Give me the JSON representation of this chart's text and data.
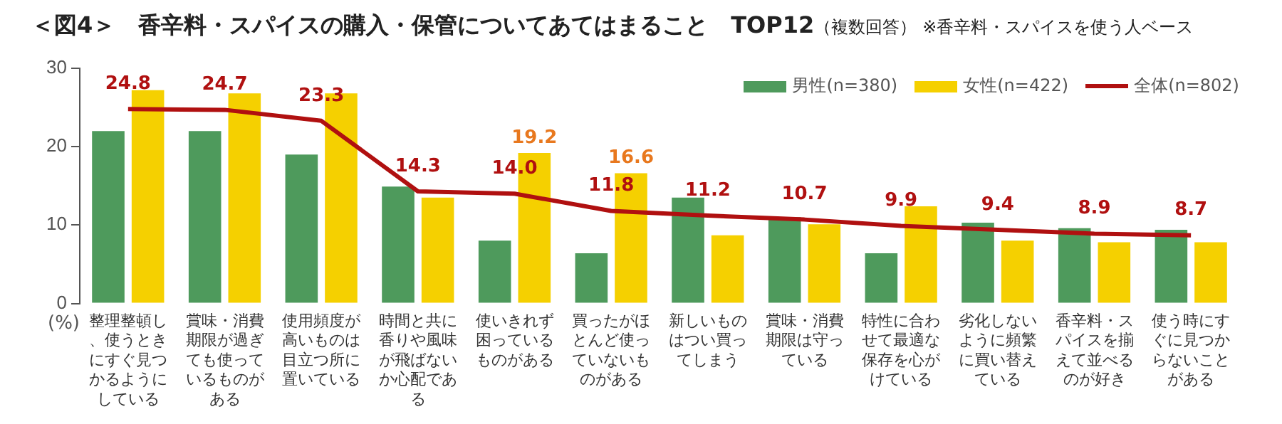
{
  "chart_data": {
    "type": "bar",
    "title": "＜図4＞　香辛料・スパイスの購入・保管についてあてはまること　TOP12",
    "subtitle": "（複数回答）",
    "annotations": [
      "※香辛料・スパイスを使う人ベース"
    ],
    "ylabel": "(%)",
    "categories": [
      "整理整頓し、使うときにすぐ見つかるようにしている",
      "賞味・消費期限が過ぎても使っているものがある",
      "使用頻度が高いものは目立つ所に置いている",
      "時間と共に香りや風味が飛ばないか心配である",
      "使いきれず困っているものがある",
      "買ったがほとんど使っていないものがある",
      "新しいものはつい買ってしまう",
      "賞味・消費期限は守っている",
      "特性に合わせて最適な保存を心がけている",
      "劣化しないように頻繁に買い替えている",
      "香辛料・スパイスを揃えて並べるのが好き",
      "使う時にすぐに見つからないことがある"
    ],
    "series": [
      {
        "name": "男性(n=380)",
        "type": "bar",
        "color": "#4e9a5c",
        "values": [
          22.0,
          22.0,
          19.0,
          14.9,
          8.0,
          6.4,
          13.5,
          11.0,
          6.4,
          10.3,
          9.6,
          9.4
        ]
      },
      {
        "name": "女性(n=422)",
        "type": "bar",
        "color": "#f5d000",
        "values": [
          27.2,
          26.8,
          26.8,
          13.5,
          19.2,
          16.6,
          8.7,
          10.1,
          12.4,
          8.0,
          7.8,
          7.8
        ],
        "value_labels": [
          null,
          null,
          null,
          null,
          "19.2",
          "16.6",
          null,
          null,
          null,
          null,
          null,
          null
        ]
      },
      {
        "name": "全体(n=802)",
        "type": "line",
        "color": "#b01010",
        "values": [
          24.8,
          24.7,
          23.3,
          14.3,
          14.0,
          11.8,
          11.2,
          10.7,
          9.9,
          9.4,
          8.9,
          8.7
        ],
        "value_labels": [
          "24.8",
          "24.7",
          "23.3",
          "14.3",
          "14.0",
          "11.8",
          "11.2",
          "10.7",
          "9.9",
          "9.4",
          "8.9",
          "8.7"
        ]
      }
    ],
    "ylim": [
      0,
      30
    ],
    "yticks": [
      0,
      10,
      20,
      30
    ],
    "grid": false,
    "legend": "top right",
    "marker": "none",
    "line_style": "solid"
  }
}
